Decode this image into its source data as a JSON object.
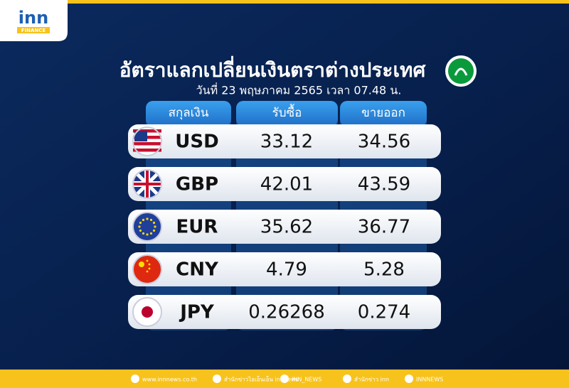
{
  "logo": {
    "brand": "inn",
    "tag": "FINANCE"
  },
  "header": {
    "title": "อัตราแลกเปลี่ยนเงินตราต่างประเทศ",
    "subtitle": "วันที่ 23 พฤษภาคม 2565 เวลา 07.48 น."
  },
  "table": {
    "columns": [
      "สกุลเงิน",
      "รับซื้อ",
      "ขายออก"
    ],
    "rows": [
      [
        "USD",
        "33.12",
        "34.56"
      ],
      [
        "GBP",
        "42.01",
        "43.59"
      ],
      [
        "EUR",
        "35.62",
        "36.77"
      ],
      [
        "CNY",
        "4.79",
        "5.28"
      ],
      [
        "JPY",
        "0.26268",
        "0.274"
      ]
    ]
  },
  "footer": {
    "items": [
      "www.innnews.co.th",
      "สำนักข่าวไอเอ็นเอ็น innnews",
      "INN_NEWS",
      "สำนักข่าว inn",
      "INNNEWS"
    ]
  }
}
